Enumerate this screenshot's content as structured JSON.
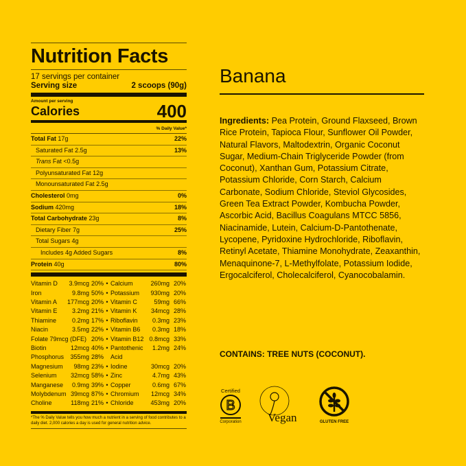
{
  "label": {
    "title": "Nutrition Facts",
    "servings": "17 servings per container",
    "serving_size_label": "Serving size",
    "serving_size_value": "2 scoops (90g)",
    "amount_per_serving": "Amount per serving",
    "calories_label": "Calories",
    "calories_value": "400",
    "dv_header": "% Daily Value*",
    "nutrients": [
      {
        "name": "Total Fat",
        "amount": "17g",
        "dv": "22%",
        "bold": true,
        "indent": 0
      },
      {
        "name": "Saturated Fat",
        "amount": "2.5g",
        "dv": "13%",
        "bold": false,
        "indent": 1
      },
      {
        "name": "Trans",
        "amount": "Fat <0.5g",
        "dv": "",
        "bold": false,
        "indent": 1,
        "italic": true
      },
      {
        "name": "Polyunsaturated Fat",
        "amount": "12g",
        "dv": "",
        "bold": false,
        "indent": 1
      },
      {
        "name": "Monounsaturated Fat",
        "amount": "2.5g",
        "dv": "",
        "bold": false,
        "indent": 1
      },
      {
        "name": "Cholesterol",
        "amount": "0mg",
        "dv": "0%",
        "bold": true,
        "indent": 0
      },
      {
        "name": "Sodium",
        "amount": "420mg",
        "dv": "18%",
        "bold": true,
        "indent": 0
      },
      {
        "name": "Total Carbohydrate",
        "amount": "23g",
        "dv": "8%",
        "bold": true,
        "indent": 0
      },
      {
        "name": "Dietary Fiber",
        "amount": "7g",
        "dv": "25%",
        "bold": false,
        "indent": 1
      },
      {
        "name": "Total Sugars",
        "amount": "4g",
        "dv": "",
        "bold": false,
        "indent": 1
      },
      {
        "name": "Includes 4g Added Sugars",
        "amount": "",
        "dv": "8%",
        "bold": false,
        "indent": 2
      },
      {
        "name": "Protein",
        "amount": "40g",
        "dv": "80%",
        "bold": true,
        "indent": 0
      }
    ],
    "vitamins": [
      [
        [
          "Vitamin D",
          "3.9mcg",
          "20%"
        ],
        [
          "Calcium",
          "260mg",
          "20%"
        ]
      ],
      [
        [
          "Iron",
          "9.8mg",
          "50%"
        ],
        [
          "Potassium",
          "930mg",
          "20%"
        ]
      ],
      [
        [
          "Vitamin A",
          "177mcg",
          "20%"
        ],
        [
          "Vitamin C",
          "59mg",
          "66%"
        ]
      ],
      [
        [
          "Vitamin E",
          "3.2mg",
          "21%"
        ],
        [
          "Vitamin K",
          "34mcg",
          "28%"
        ]
      ],
      [
        [
          "Thiamine",
          "0.2mg",
          "17%"
        ],
        [
          "Riboflavin",
          "0.3mg",
          "23%"
        ]
      ],
      [
        [
          "Niacin",
          "3.5mg",
          "22%"
        ],
        [
          "Vitamin B6",
          "0.3mg",
          "18%"
        ]
      ],
      [
        [
          "Folate",
          "79mcg (DFE)",
          "20%"
        ],
        [
          "Vitamin B12",
          "0.8mcg",
          "33%"
        ]
      ],
      [
        [
          "Biotin",
          "12mcg",
          "40%"
        ],
        [
          "Pantothenic",
          "1.2mg",
          "24%"
        ]
      ],
      [
        [
          "Phosphorus",
          "355mg",
          "28%"
        ],
        [
          "Acid",
          "",
          ""
        ]
      ],
      [
        [
          "Magnesium",
          "98mg",
          "23%"
        ],
        [
          "Iodine",
          "30mcg",
          "20%"
        ]
      ],
      [
        [
          "Selenium",
          "32mcg",
          "58%"
        ],
        [
          "Zinc",
          "4.7mg",
          "43%"
        ]
      ],
      [
        [
          "Manganese",
          "0.9mg",
          "39%"
        ],
        [
          "Copper",
          "0.6mg",
          "67%"
        ]
      ],
      [
        [
          "Molybdenum",
          "39mcg",
          "87%"
        ],
        [
          "Chromium",
          "12mcg",
          "34%"
        ]
      ],
      [
        [
          "Choline",
          "118mg",
          "21%"
        ],
        [
          "Chloride",
          "453mg",
          "20%"
        ]
      ]
    ],
    "footnote": "*The % Daily Value tells you how much a nutrient in a serving of food contributes to a daily diet. 2,000 calories a day is used for general nutrition advice."
  },
  "flavor": "Banana",
  "ingredients_label": "Ingredients:",
  "ingredients": "Pea Protein, Ground Flaxseed, Brown Rice Protein, Tapioca Flour, Sunflower Oil Powder, Natural Flavors, Maltodextrin, Organic Coconut Sugar, Medium-Chain Triglyceride Powder (from Coconut), Xanthan Gum, Potassium Citrate, Potassium Chloride, Corn Starch, Calcium Carbonate, Sodium Chloride, Steviol Glycosides, Green Tea Extract Powder, Kombucha Powder, Ascorbic Acid, Bacillus Coagulans MTCC 5856, Niacinamide, Lutein, Calcium-D-Pantothenate, Lycopene, Pyridoxine Hydrochloride, Riboflavin, Retinyl Acetate, Thiamine Monohydrate, Zeaxanthin, Menaquinone-7, L-Methylfolate, Potassium Iodide, Ergocalciferol, Cholecalciferol, Cyanocobalamin.",
  "contains": "CONTAINS: TREE NUTS (COCONUT).",
  "badges": {
    "bcorp_top": "Certified",
    "bcorp_bottom": "Corporation",
    "vegan": "Vegan",
    "gluten": "GLUTEN FREE"
  },
  "colors": {
    "background": "#FFCC00",
    "ink": "#1a1400"
  }
}
